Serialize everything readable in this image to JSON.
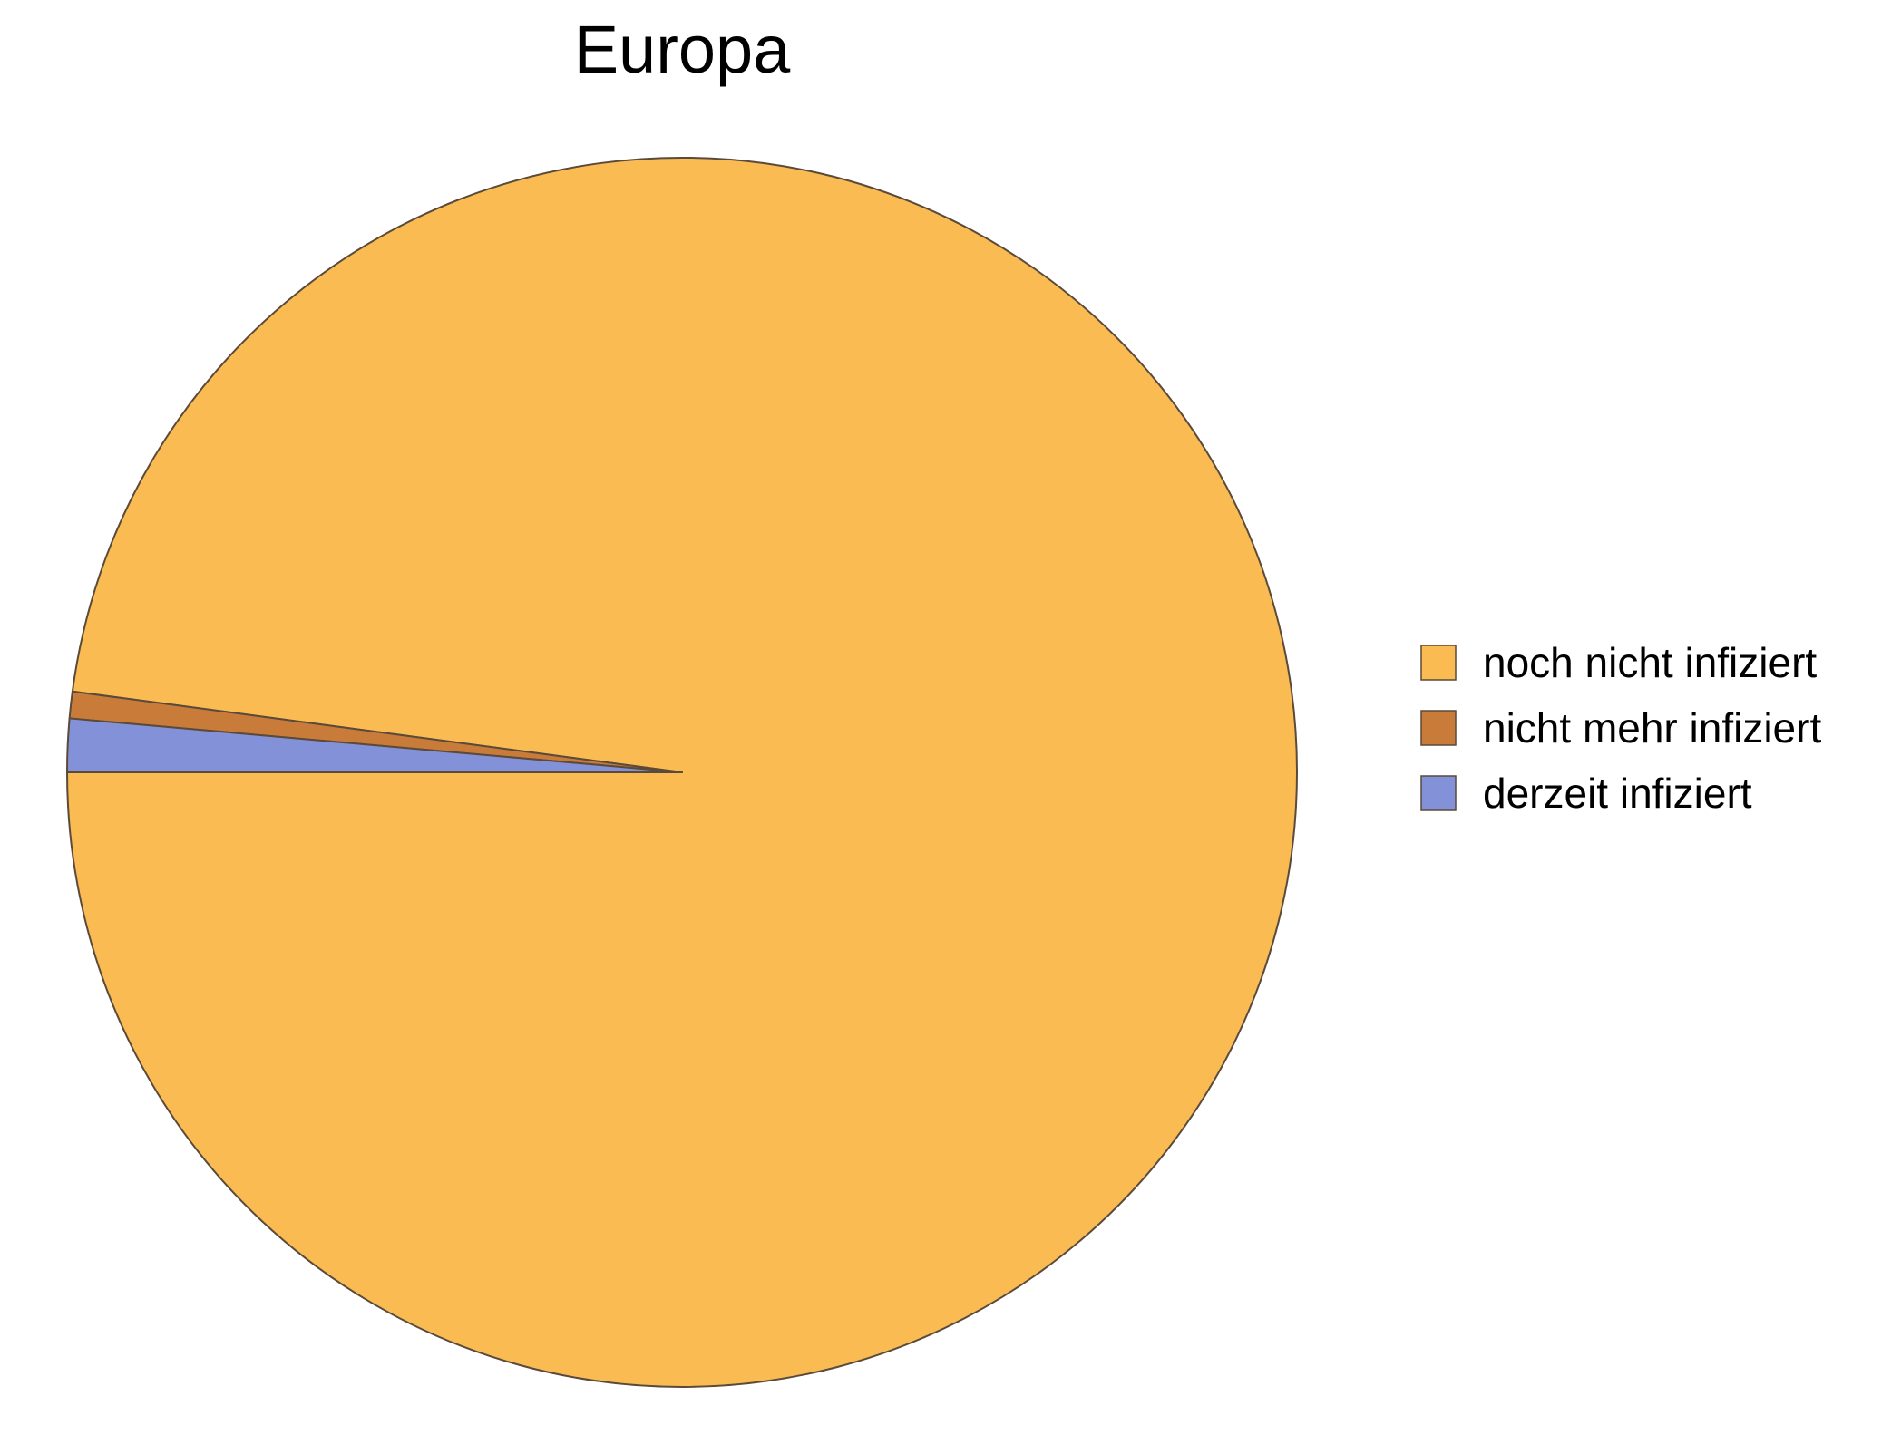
{
  "chart_data": {
    "type": "pie",
    "title": "Europa",
    "slices": [
      {
        "label": "noch nicht infiziert",
        "value": 97.9,
        "color": "#FABB53"
      },
      {
        "label": "nicht mehr infiziert",
        "value": 0.7,
        "color": "#C97B3A"
      },
      {
        "label": "derzeit infiziert",
        "value": 1.4,
        "color": "#8391D8"
      }
    ],
    "start_angle_deg": 180,
    "direction": "counterclockwise",
    "legend_position": "right",
    "edge_color": "#5A4A3A"
  }
}
